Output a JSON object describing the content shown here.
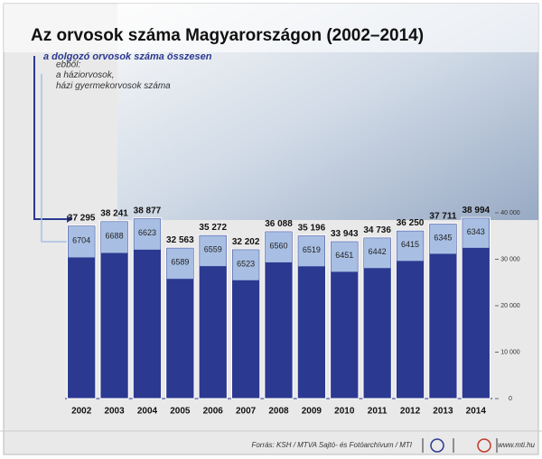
{
  "chart_data": {
    "type": "bar",
    "title": "Az orvosok száma Magyarországon (2002–2014)",
    "legend_note": "ebből:",
    "categories": [
      "2002",
      "2003",
      "2004",
      "2005",
      "2006",
      "2007",
      "2008",
      "2009",
      "2010",
      "2011",
      "2012",
      "2013",
      "2014"
    ],
    "series": [
      {
        "name": "a dolgozó orvosok száma összesen",
        "color": "#2b3990",
        "values": [
          37295,
          38241,
          38877,
          32563,
          35272,
          32202,
          36088,
          35196,
          33943,
          34736,
          36250,
          37711,
          38994
        ],
        "value_labels": [
          "37 295",
          "38 241",
          "38 877",
          "32 563",
          "35 272",
          "32 202",
          "36 088",
          "35 196",
          "33 943",
          "34 736",
          "36 250",
          "37 711",
          "38 994"
        ]
      },
      {
        "name": "a háziorvosok,\nházi gyermekorvosok száma",
        "color": "#a8bfe3",
        "values": [
          6704,
          6688,
          6623,
          6589,
          6559,
          6523,
          6560,
          6519,
          6451,
          6442,
          6415,
          6345,
          6343
        ]
      }
    ],
    "ylim": [
      0,
      40000
    ],
    "yticks": [
      {
        "value": 0,
        "label": "0"
      },
      {
        "value": 10000,
        "label": "10 000"
      },
      {
        "value": 20000,
        "label": "20 000"
      },
      {
        "value": 30000,
        "label": "30 000"
      },
      {
        "value": 40000,
        "label": "40 000"
      }
    ],
    "source": "Forrás: KSH / MTVA Sajtó- és Fotóarchívum / MTI",
    "website": "www.mti.hu"
  }
}
